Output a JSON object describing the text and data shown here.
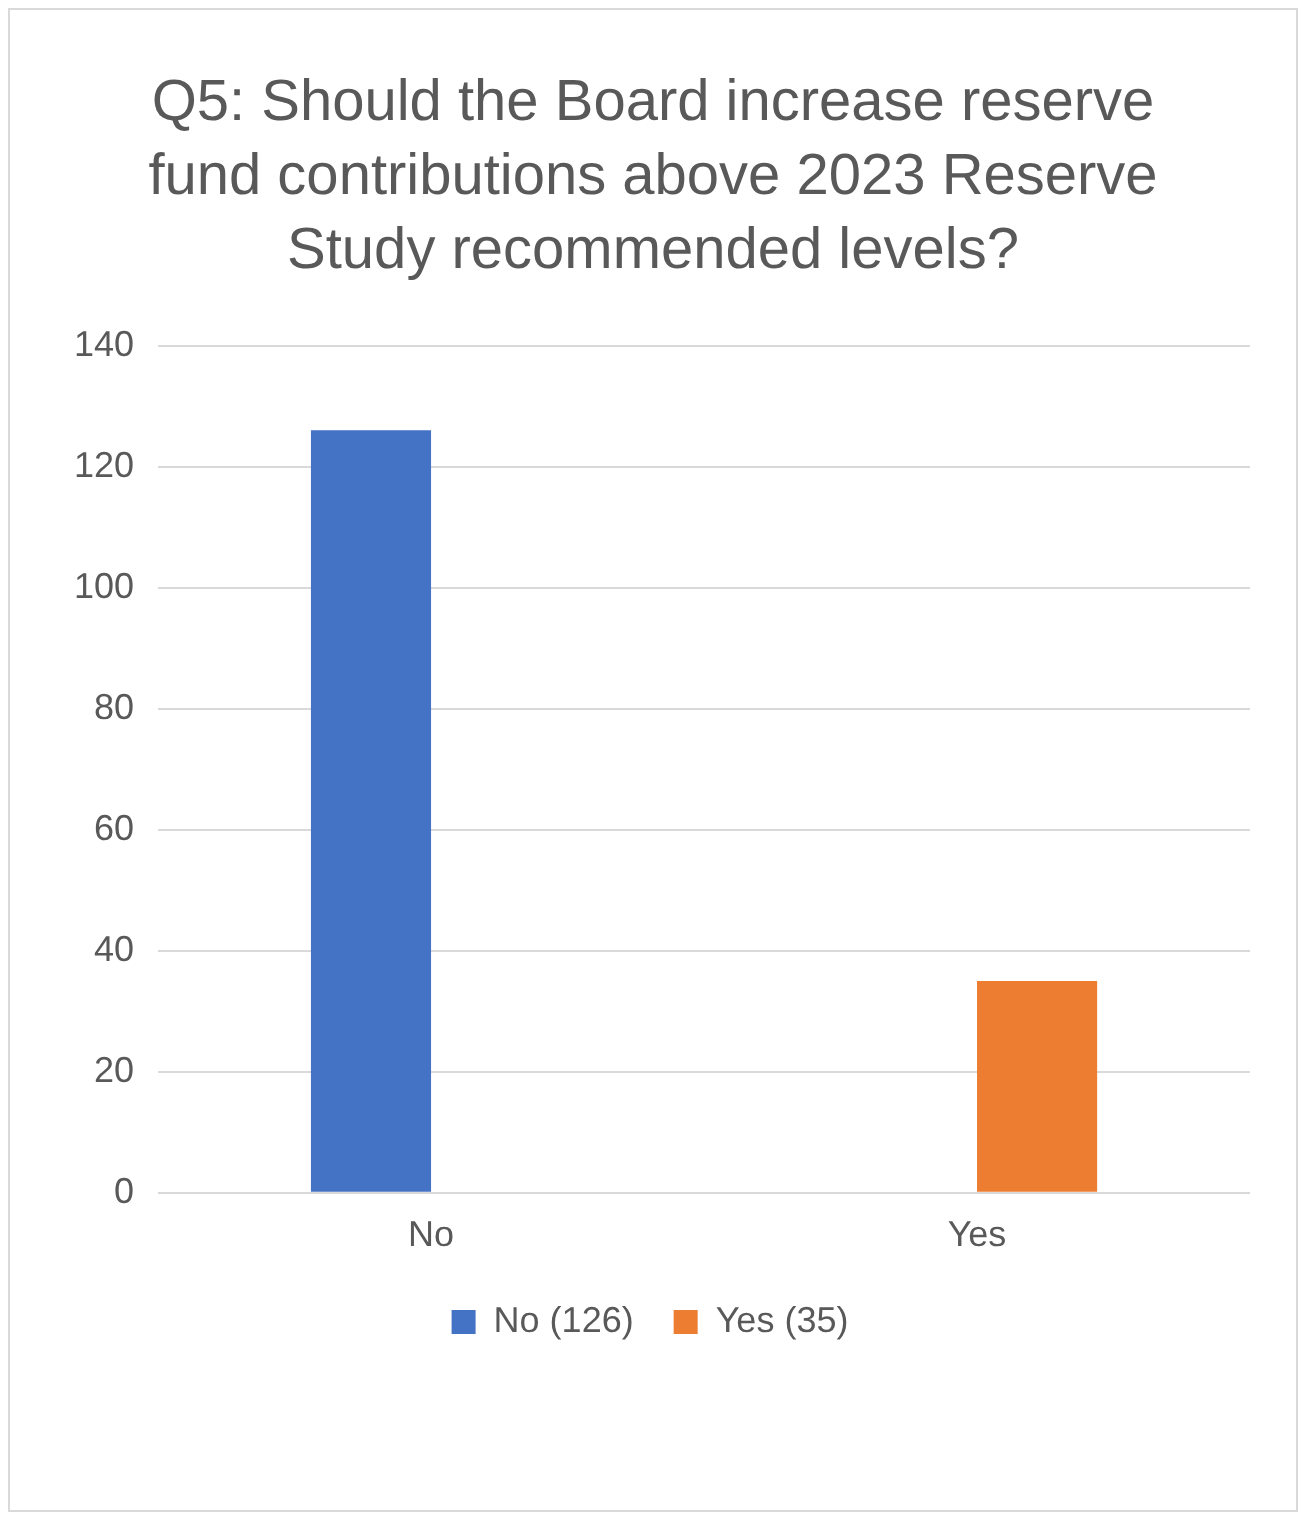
{
  "chart_data": {
    "type": "bar",
    "title": "Q5: Should the Board increase reserve fund contributions above 2023 Reserve Study recommended levels?",
    "categories": [
      "No",
      "Yes"
    ],
    "series": [
      {
        "name": "No (126)",
        "color": "#4472c4",
        "values": [
          126,
          null
        ]
      },
      {
        "name": "Yes (35)",
        "color": "#ed7d31",
        "values": [
          null,
          35
        ]
      }
    ],
    "ylim": [
      0,
      140
    ],
    "yticks": [
      0,
      20,
      40,
      60,
      80,
      100,
      120,
      140
    ],
    "grid": "y",
    "legend": "bottom"
  }
}
